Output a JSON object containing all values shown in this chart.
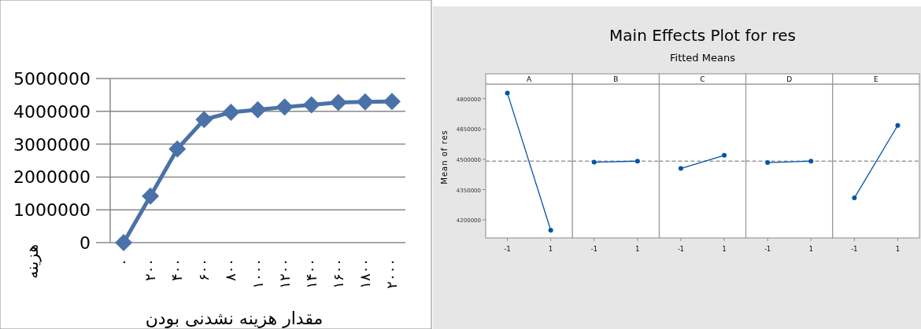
{
  "chart_data": [
    {
      "type": "line",
      "xlabel": "مقدار هزینه نشدنی بودن",
      "ylabel": "هزینه",
      "categories": [
        "۰",
        "۲۰۰",
        "۴۰۰",
        "۶۰۰",
        "۸۰۰",
        "۱۰۰۰",
        "۱۲۰۰",
        "۱۴۰۰",
        "۱۶۰۰",
        "۱۸۰۰",
        "۲۰۰۰"
      ],
      "series": [
        {
          "color": "#4a72a8",
          "values": [
            0,
            1420000,
            2850000,
            3750000,
            3970000,
            4050000,
            4130000,
            4200000,
            4270000,
            4290000,
            4300000
          ]
        }
      ],
      "ylim": [
        0,
        5000000
      ],
      "yticks": [
        0,
        1000000,
        2000000,
        3000000,
        4000000,
        5000000
      ],
      "grid": "y",
      "marker": "diamond",
      "line_style": "solid"
    },
    {
      "type": "line",
      "ylabel": "Mean of res",
      "x2label": "A",
      "categories": [
        "-1",
        "1"
      ],
      "series": [
        {
          "color": "#0054a6",
          "values": [
            4828000,
            4149000
          ]
        }
      ],
      "ylim": [
        4111000,
        4873000
      ],
      "yticks": [
        4200000,
        4350000,
        4500000,
        4650000,
        4800000
      ],
      "ref_lines": [
        {
          "axis": "y",
          "value": 4491000,
          "color": "#999999",
          "line_style": "dashed"
        }
      ],
      "marker": "circle"
    },
    {
      "type": "line",
      "x2label": "B",
      "categories": [
        "-1",
        "1"
      ],
      "series": [
        {
          "color": "#0054a6",
          "values": [
            4486000,
            4491000
          ]
        }
      ],
      "ylim": [
        4111000,
        4873000
      ],
      "tick_labels": "x",
      "ref_lines": [
        {
          "axis": "y",
          "value": 4491000,
          "color": "#999999",
          "line_style": "dashed"
        }
      ],
      "marker": "circle"
    },
    {
      "type": "line",
      "title": "Main Effects Plot for res",
      "subtitle": "Fitted Means",
      "x2label": "C",
      "categories": [
        "-1",
        "1"
      ],
      "series": [
        {
          "color": "#0054a6",
          "values": [
            4455000,
            4520000
          ]
        }
      ],
      "ylim": [
        4111000,
        4873000
      ],
      "tick_labels": "x",
      "ref_lines": [
        {
          "axis": "y",
          "value": 4491000,
          "color": "#999999",
          "line_style": "dashed"
        }
      ],
      "marker": "circle"
    },
    {
      "type": "line",
      "x2label": "D",
      "categories": [
        "-1",
        "1"
      ],
      "series": [
        {
          "color": "#0054a6",
          "values": [
            4484000,
            4491000
          ]
        }
      ],
      "ylim": [
        4111000,
        4873000
      ],
      "tick_labels": "x",
      "ref_lines": [
        {
          "axis": "y",
          "value": 4491000,
          "color": "#999999",
          "line_style": "dashed"
        }
      ],
      "marker": "circle"
    },
    {
      "type": "line",
      "x2label": "E",
      "categories": [
        "-1",
        "1"
      ],
      "series": [
        {
          "color": "#0054a6",
          "values": [
            4309000,
            4668000
          ]
        }
      ],
      "ylim": [
        4111000,
        4873000
      ],
      "tick_labels": "x",
      "ref_lines": [
        {
          "axis": "y",
          "value": 4491000,
          "color": "#999999",
          "line_style": "dashed"
        }
      ],
      "marker": "circle"
    }
  ]
}
